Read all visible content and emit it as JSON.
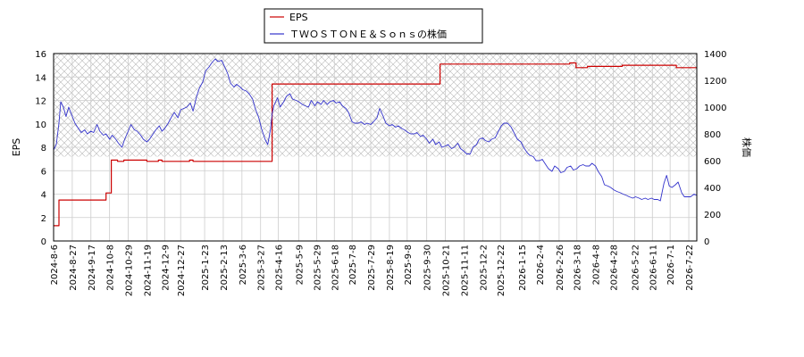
{
  "chart_data": {
    "type": "line",
    "title": "",
    "xlabel": "",
    "ylabel_left": "EPS",
    "ylabel_right": "株価",
    "ylim_left": [
      0,
      16
    ],
    "ylim_right": [
      0,
      1400
    ],
    "yticks_left": [
      0,
      2,
      4,
      6,
      8,
      10,
      12,
      14,
      16
    ],
    "yticks_right": [
      0,
      200,
      400,
      600,
      800,
      1000,
      1200,
      1400
    ],
    "x_start": "2024-8-6",
    "x_end": "2026-7-31",
    "xticks": [
      "2024-8-6",
      "2024-8-27",
      "2024-9-17",
      "2024-10-8",
      "2024-10-29",
      "2024-11-19",
      "2024-12-9",
      "2024-12-27",
      "2025-1-23",
      "2025-2-13",
      "2025-3-6",
      "2025-3-27",
      "2025-4-16",
      "2025-5-9",
      "2025-5-29",
      "2025-6-18",
      "2025-7-8",
      "2025-7-29",
      "2025-8-19",
      "2025-9-8",
      "2025-9-30",
      "2025-10-21",
      "2025-11-11",
      "2025-12-2",
      "2025-12-22",
      "2026-1-15",
      "2026-2-4",
      "2026-2-26",
      "2026-3-18",
      "2026-4-8",
      "2026-4-28",
      "2026-5-22",
      "2026-6-11",
      "2026-7-1",
      "2026-7-22"
    ],
    "grid": true,
    "hatched_band_right": [
      630,
      1400
    ],
    "legend_position": "top-center",
    "series": [
      {
        "name": "EPS",
        "axis": "left",
        "color": "#cc0000",
        "step": true,
        "points": [
          [
            "2024-8-6",
            1.3
          ],
          [
            "2024-8-12",
            1.3
          ],
          [
            "2024-8-12",
            3.5
          ],
          [
            "2024-10-4",
            3.5
          ],
          [
            "2024-10-4",
            4.1
          ],
          [
            "2024-10-10",
            4.1
          ],
          [
            "2024-10-10",
            6.9
          ],
          [
            "2024-10-17",
            6.9
          ],
          [
            "2024-10-17",
            6.8
          ],
          [
            "2024-10-24",
            6.8
          ],
          [
            "2024-10-24",
            6.9
          ],
          [
            "2024-11-19",
            6.9
          ],
          [
            "2024-11-19",
            6.8
          ],
          [
            "2024-12-2",
            6.8
          ],
          [
            "2024-12-2",
            6.9
          ],
          [
            "2024-12-6",
            6.9
          ],
          [
            "2024-12-6",
            6.8
          ],
          [
            "2025-1-6",
            6.8
          ],
          [
            "2025-1-6",
            6.9
          ],
          [
            "2025-1-10",
            6.9
          ],
          [
            "2025-1-10",
            6.8
          ],
          [
            "2025-4-9",
            6.8
          ],
          [
            "2025-4-9",
            13.4
          ],
          [
            "2025-10-15",
            13.4
          ],
          [
            "2025-10-15",
            15.1
          ],
          [
            "2026-3-10",
            15.1
          ],
          [
            "2026-3-10",
            15.2
          ],
          [
            "2026-3-17",
            15.2
          ],
          [
            "2026-3-17",
            14.8
          ],
          [
            "2026-3-30",
            14.8
          ],
          [
            "2026-3-30",
            14.9
          ],
          [
            "2026-5-8",
            14.9
          ],
          [
            "2026-5-8",
            15.0
          ],
          [
            "2026-7-8",
            15.0
          ],
          [
            "2026-7-8",
            14.8
          ],
          [
            "2026-7-31",
            14.8
          ]
        ]
      },
      {
        "name": "ＴＷＯＳＴＯＮＥ＆Ｓｏｎｓの株価",
        "axis": "right",
        "color": "#3333cc",
        "step": false,
        "points": [
          [
            "2024-8-6",
            680
          ],
          [
            "2024-8-9",
            720
          ],
          [
            "2024-8-12",
            880
          ],
          [
            "2024-8-14",
            1040
          ],
          [
            "2024-8-17",
            1000
          ],
          [
            "2024-8-20",
            930
          ],
          [
            "2024-8-23",
            1000
          ],
          [
            "2024-8-27",
            930
          ],
          [
            "2024-8-30",
            880
          ],
          [
            "2024-9-3",
            840
          ],
          [
            "2024-9-6",
            810
          ],
          [
            "2024-9-10",
            830
          ],
          [
            "2024-9-13",
            800
          ],
          [
            "2024-9-17",
            820
          ],
          [
            "2024-9-20",
            810
          ],
          [
            "2024-9-24",
            870
          ],
          [
            "2024-9-27",
            820
          ],
          [
            "2024-10-1",
            790
          ],
          [
            "2024-10-4",
            800
          ],
          [
            "2024-10-8",
            760
          ],
          [
            "2024-10-11",
            790
          ],
          [
            "2024-10-15",
            760
          ],
          [
            "2024-10-18",
            730
          ],
          [
            "2024-10-22",
            700
          ],
          [
            "2024-10-25",
            760
          ],
          [
            "2024-10-29",
            820
          ],
          [
            "2024-11-1",
            870
          ],
          [
            "2024-11-5",
            830
          ],
          [
            "2024-11-8",
            820
          ],
          [
            "2024-11-12",
            790
          ],
          [
            "2024-11-15",
            760
          ],
          [
            "2024-11-19",
            740
          ],
          [
            "2024-11-22",
            760
          ],
          [
            "2024-11-26",
            800
          ],
          [
            "2024-11-29",
            830
          ],
          [
            "2024-12-3",
            860
          ],
          [
            "2024-12-6",
            820
          ],
          [
            "2024-12-9",
            840
          ],
          [
            "2024-12-13",
            880
          ],
          [
            "2024-12-17",
            930
          ],
          [
            "2024-12-20",
            960
          ],
          [
            "2024-12-24",
            920
          ],
          [
            "2024-12-27",
            980
          ],
          [
            "2025-1-3",
            1000
          ],
          [
            "2025-1-7",
            1030
          ],
          [
            "2025-1-10",
            970
          ],
          [
            "2025-1-14",
            1080
          ],
          [
            "2025-1-17",
            1140
          ],
          [
            "2025-1-21",
            1190
          ],
          [
            "2025-1-24",
            1270
          ],
          [
            "2025-1-28",
            1300
          ],
          [
            "2025-1-31",
            1330
          ],
          [
            "2025-2-4",
            1360
          ],
          [
            "2025-2-7",
            1340
          ],
          [
            "2025-2-11",
            1350
          ],
          [
            "2025-2-14",
            1310
          ],
          [
            "2025-2-18",
            1250
          ],
          [
            "2025-2-21",
            1180
          ],
          [
            "2025-2-25",
            1150
          ],
          [
            "2025-2-28",
            1170
          ],
          [
            "2025-3-4",
            1150
          ],
          [
            "2025-3-7",
            1130
          ],
          [
            "2025-3-11",
            1120
          ],
          [
            "2025-3-14",
            1100
          ],
          [
            "2025-3-18",
            1060
          ],
          [
            "2025-3-21",
            990
          ],
          [
            "2025-3-25",
            920
          ],
          [
            "2025-3-28",
            840
          ],
          [
            "2025-4-1",
            760
          ],
          [
            "2025-4-4",
            720
          ],
          [
            "2025-4-7",
            830
          ],
          [
            "2025-4-9",
            950
          ],
          [
            "2025-4-11",
            1010
          ],
          [
            "2025-4-15",
            1070
          ],
          [
            "2025-4-18",
            1000
          ],
          [
            "2025-4-22",
            1040
          ],
          [
            "2025-4-25",
            1080
          ],
          [
            "2025-4-29",
            1100
          ],
          [
            "2025-5-2",
            1060
          ],
          [
            "2025-5-6",
            1050
          ],
          [
            "2025-5-9",
            1040
          ],
          [
            "2025-5-13",
            1020
          ],
          [
            "2025-5-16",
            1010
          ],
          [
            "2025-5-20",
            1000
          ],
          [
            "2025-5-23",
            1050
          ],
          [
            "2025-5-27",
            1010
          ],
          [
            "2025-5-30",
            1040
          ],
          [
            "2025-6-3",
            1020
          ],
          [
            "2025-6-6",
            1050
          ],
          [
            "2025-6-10",
            1020
          ],
          [
            "2025-6-13",
            1040
          ],
          [
            "2025-6-17",
            1050
          ],
          [
            "2025-6-20",
            1030
          ],
          [
            "2025-6-24",
            1040
          ],
          [
            "2025-6-27",
            1010
          ],
          [
            "2025-7-1",
            990
          ],
          [
            "2025-7-4",
            960
          ],
          [
            "2025-7-8",
            890
          ],
          [
            "2025-7-11",
            880
          ],
          [
            "2025-7-15",
            880
          ],
          [
            "2025-7-18",
            890
          ],
          [
            "2025-7-22",
            870
          ],
          [
            "2025-7-25",
            880
          ],
          [
            "2025-7-29",
            870
          ],
          [
            "2025-8-1",
            890
          ],
          [
            "2025-8-5",
            920
          ],
          [
            "2025-8-8",
            990
          ],
          [
            "2025-8-12",
            930
          ],
          [
            "2025-8-15",
            880
          ],
          [
            "2025-8-19",
            860
          ],
          [
            "2025-8-22",
            870
          ],
          [
            "2025-8-26",
            850
          ],
          [
            "2025-8-29",
            860
          ],
          [
            "2025-9-2",
            840
          ],
          [
            "2025-9-5",
            830
          ],
          [
            "2025-9-9",
            810
          ],
          [
            "2025-9-12",
            800
          ],
          [
            "2025-9-16",
            800
          ],
          [
            "2025-9-19",
            810
          ],
          [
            "2025-9-23",
            780
          ],
          [
            "2025-9-26",
            790
          ],
          [
            "2025-9-30",
            760
          ],
          [
            "2025-10-3",
            730
          ],
          [
            "2025-10-7",
            760
          ],
          [
            "2025-10-10",
            720
          ],
          [
            "2025-10-14",
            740
          ],
          [
            "2025-10-17",
            700
          ],
          [
            "2025-10-21",
            710
          ],
          [
            "2025-10-24",
            720
          ],
          [
            "2025-10-28",
            690
          ],
          [
            "2025-10-31",
            700
          ],
          [
            "2025-11-4",
            730
          ],
          [
            "2025-11-7",
            690
          ],
          [
            "2025-11-11",
            670
          ],
          [
            "2025-11-14",
            650
          ],
          [
            "2025-11-18",
            650
          ],
          [
            "2025-11-21",
            700
          ],
          [
            "2025-11-25",
            720
          ],
          [
            "2025-11-28",
            760
          ],
          [
            "2025-12-2",
            770
          ],
          [
            "2025-12-5",
            750
          ],
          [
            "2025-12-9",
            740
          ],
          [
            "2025-12-12",
            760
          ],
          [
            "2025-12-16",
            770
          ],
          [
            "2025-12-19",
            810
          ],
          [
            "2025-12-23",
            860
          ],
          [
            "2025-12-26",
            880
          ],
          [
            "2025-12-30",
            880
          ],
          [
            "2026-1-3",
            850
          ],
          [
            "2026-1-7",
            800
          ],
          [
            "2026-1-10",
            760
          ],
          [
            "2026-1-14",
            740
          ],
          [
            "2026-1-17",
            700
          ],
          [
            "2026-1-21",
            660
          ],
          [
            "2026-1-24",
            640
          ],
          [
            "2026-1-28",
            630
          ],
          [
            "2026-1-31",
            600
          ],
          [
            "2026-2-4",
            600
          ],
          [
            "2026-2-7",
            610
          ],
          [
            "2026-2-11",
            570
          ],
          [
            "2026-2-14",
            540
          ],
          [
            "2026-2-18",
            520
          ],
          [
            "2026-2-21",
            560
          ],
          [
            "2026-2-25",
            540
          ],
          [
            "2026-2-28",
            510
          ],
          [
            "2026-3-4",
            520
          ],
          [
            "2026-3-7",
            550
          ],
          [
            "2026-3-11",
            560
          ],
          [
            "2026-3-14",
            530
          ],
          [
            "2026-3-18",
            540
          ],
          [
            "2026-3-21",
            560
          ],
          [
            "2026-3-25",
            570
          ],
          [
            "2026-3-28",
            560
          ],
          [
            "2026-4-1",
            560
          ],
          [
            "2026-4-4",
            580
          ],
          [
            "2026-4-8",
            560
          ],
          [
            "2026-4-11",
            520
          ],
          [
            "2026-4-15",
            480
          ],
          [
            "2026-4-18",
            420
          ],
          [
            "2026-4-22",
            410
          ],
          [
            "2026-4-25",
            400
          ],
          [
            "2026-4-29",
            380
          ],
          [
            "2026-5-2",
            370
          ],
          [
            "2026-5-6",
            360
          ],
          [
            "2026-5-9",
            350
          ],
          [
            "2026-5-13",
            340
          ],
          [
            "2026-5-16",
            330
          ],
          [
            "2026-5-20",
            320
          ],
          [
            "2026-5-23",
            330
          ],
          [
            "2026-5-27",
            320
          ],
          [
            "2026-5-30",
            310
          ],
          [
            "2026-6-3",
            320
          ],
          [
            "2026-6-6",
            310
          ],
          [
            "2026-6-10",
            320
          ],
          [
            "2026-6-13",
            310
          ],
          [
            "2026-6-17",
            310
          ],
          [
            "2026-6-20",
            300
          ],
          [
            "2026-6-24",
            430
          ],
          [
            "2026-6-27",
            490
          ],
          [
            "2026-6-30",
            410
          ],
          [
            "2026-7-3",
            400
          ],
          [
            "2026-7-7",
            420
          ],
          [
            "2026-7-10",
            440
          ],
          [
            "2026-7-14",
            360
          ],
          [
            "2026-7-17",
            330
          ],
          [
            "2026-7-21",
            330
          ],
          [
            "2026-7-24",
            330
          ],
          [
            "2026-7-28",
            350
          ],
          [
            "2026-7-31",
            340
          ]
        ]
      }
    ]
  }
}
